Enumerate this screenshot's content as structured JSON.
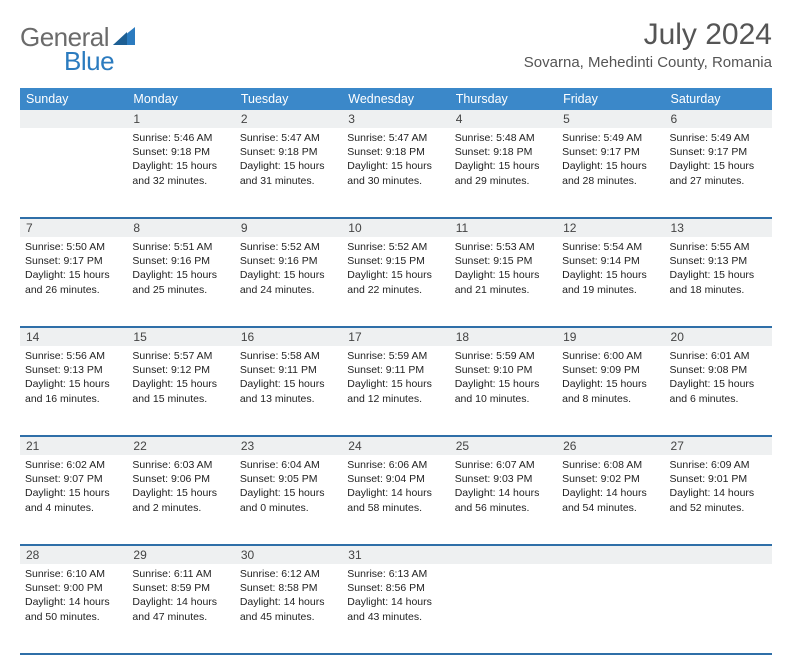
{
  "logo": {
    "text1": "General",
    "text2": "Blue"
  },
  "title": "July 2024",
  "location": "Sovarna, Mehedinti County, Romania",
  "headers": [
    "Sunday",
    "Monday",
    "Tuesday",
    "Wednesday",
    "Thursday",
    "Friday",
    "Saturday"
  ],
  "colors": {
    "header_bg": "#3b88c9",
    "row_border": "#2f6fa8",
    "daynum_bg": "#eef0f1",
    "logo_gray": "#6b6b6b",
    "logo_blue": "#2b7bbf"
  },
  "weeks": [
    [
      {
        "n": "",
        "lines": []
      },
      {
        "n": "1",
        "lines": [
          "Sunrise: 5:46 AM",
          "Sunset: 9:18 PM",
          "Daylight: 15 hours",
          "and 32 minutes."
        ]
      },
      {
        "n": "2",
        "lines": [
          "Sunrise: 5:47 AM",
          "Sunset: 9:18 PM",
          "Daylight: 15 hours",
          "and 31 minutes."
        ]
      },
      {
        "n": "3",
        "lines": [
          "Sunrise: 5:47 AM",
          "Sunset: 9:18 PM",
          "Daylight: 15 hours",
          "and 30 minutes."
        ]
      },
      {
        "n": "4",
        "lines": [
          "Sunrise: 5:48 AM",
          "Sunset: 9:18 PM",
          "Daylight: 15 hours",
          "and 29 minutes."
        ]
      },
      {
        "n": "5",
        "lines": [
          "Sunrise: 5:49 AM",
          "Sunset: 9:17 PM",
          "Daylight: 15 hours",
          "and 28 minutes."
        ]
      },
      {
        "n": "6",
        "lines": [
          "Sunrise: 5:49 AM",
          "Sunset: 9:17 PM",
          "Daylight: 15 hours",
          "and 27 minutes."
        ]
      }
    ],
    [
      {
        "n": "7",
        "lines": [
          "Sunrise: 5:50 AM",
          "Sunset: 9:17 PM",
          "Daylight: 15 hours",
          "and 26 minutes."
        ]
      },
      {
        "n": "8",
        "lines": [
          "Sunrise: 5:51 AM",
          "Sunset: 9:16 PM",
          "Daylight: 15 hours",
          "and 25 minutes."
        ]
      },
      {
        "n": "9",
        "lines": [
          "Sunrise: 5:52 AM",
          "Sunset: 9:16 PM",
          "Daylight: 15 hours",
          "and 24 minutes."
        ]
      },
      {
        "n": "10",
        "lines": [
          "Sunrise: 5:52 AM",
          "Sunset: 9:15 PM",
          "Daylight: 15 hours",
          "and 22 minutes."
        ]
      },
      {
        "n": "11",
        "lines": [
          "Sunrise: 5:53 AM",
          "Sunset: 9:15 PM",
          "Daylight: 15 hours",
          "and 21 minutes."
        ]
      },
      {
        "n": "12",
        "lines": [
          "Sunrise: 5:54 AM",
          "Sunset: 9:14 PM",
          "Daylight: 15 hours",
          "and 19 minutes."
        ]
      },
      {
        "n": "13",
        "lines": [
          "Sunrise: 5:55 AM",
          "Sunset: 9:13 PM",
          "Daylight: 15 hours",
          "and 18 minutes."
        ]
      }
    ],
    [
      {
        "n": "14",
        "lines": [
          "Sunrise: 5:56 AM",
          "Sunset: 9:13 PM",
          "Daylight: 15 hours",
          "and 16 minutes."
        ]
      },
      {
        "n": "15",
        "lines": [
          "Sunrise: 5:57 AM",
          "Sunset: 9:12 PM",
          "Daylight: 15 hours",
          "and 15 minutes."
        ]
      },
      {
        "n": "16",
        "lines": [
          "Sunrise: 5:58 AM",
          "Sunset: 9:11 PM",
          "Daylight: 15 hours",
          "and 13 minutes."
        ]
      },
      {
        "n": "17",
        "lines": [
          "Sunrise: 5:59 AM",
          "Sunset: 9:11 PM",
          "Daylight: 15 hours",
          "and 12 minutes."
        ]
      },
      {
        "n": "18",
        "lines": [
          "Sunrise: 5:59 AM",
          "Sunset: 9:10 PM",
          "Daylight: 15 hours",
          "and 10 minutes."
        ]
      },
      {
        "n": "19",
        "lines": [
          "Sunrise: 6:00 AM",
          "Sunset: 9:09 PM",
          "Daylight: 15 hours",
          "and 8 minutes."
        ]
      },
      {
        "n": "20",
        "lines": [
          "Sunrise: 6:01 AM",
          "Sunset: 9:08 PM",
          "Daylight: 15 hours",
          "and 6 minutes."
        ]
      }
    ],
    [
      {
        "n": "21",
        "lines": [
          "Sunrise: 6:02 AM",
          "Sunset: 9:07 PM",
          "Daylight: 15 hours",
          "and 4 minutes."
        ]
      },
      {
        "n": "22",
        "lines": [
          "Sunrise: 6:03 AM",
          "Sunset: 9:06 PM",
          "Daylight: 15 hours",
          "and 2 minutes."
        ]
      },
      {
        "n": "23",
        "lines": [
          "Sunrise: 6:04 AM",
          "Sunset: 9:05 PM",
          "Daylight: 15 hours",
          "and 0 minutes."
        ]
      },
      {
        "n": "24",
        "lines": [
          "Sunrise: 6:06 AM",
          "Sunset: 9:04 PM",
          "Daylight: 14 hours",
          "and 58 minutes."
        ]
      },
      {
        "n": "25",
        "lines": [
          "Sunrise: 6:07 AM",
          "Sunset: 9:03 PM",
          "Daylight: 14 hours",
          "and 56 minutes."
        ]
      },
      {
        "n": "26",
        "lines": [
          "Sunrise: 6:08 AM",
          "Sunset: 9:02 PM",
          "Daylight: 14 hours",
          "and 54 minutes."
        ]
      },
      {
        "n": "27",
        "lines": [
          "Sunrise: 6:09 AM",
          "Sunset: 9:01 PM",
          "Daylight: 14 hours",
          "and 52 minutes."
        ]
      }
    ],
    [
      {
        "n": "28",
        "lines": [
          "Sunrise: 6:10 AM",
          "Sunset: 9:00 PM",
          "Daylight: 14 hours",
          "and 50 minutes."
        ]
      },
      {
        "n": "29",
        "lines": [
          "Sunrise: 6:11 AM",
          "Sunset: 8:59 PM",
          "Daylight: 14 hours",
          "and 47 minutes."
        ]
      },
      {
        "n": "30",
        "lines": [
          "Sunrise: 6:12 AM",
          "Sunset: 8:58 PM",
          "Daylight: 14 hours",
          "and 45 minutes."
        ]
      },
      {
        "n": "31",
        "lines": [
          "Sunrise: 6:13 AM",
          "Sunset: 8:56 PM",
          "Daylight: 14 hours",
          "and 43 minutes."
        ]
      },
      {
        "n": "",
        "lines": []
      },
      {
        "n": "",
        "lines": []
      },
      {
        "n": "",
        "lines": []
      }
    ]
  ]
}
